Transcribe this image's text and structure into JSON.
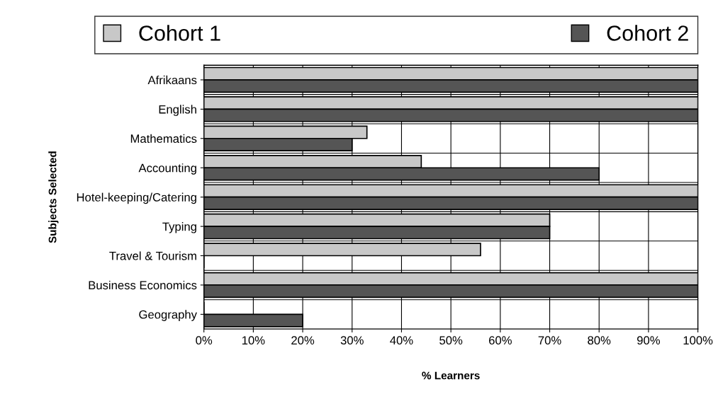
{
  "chart_data": {
    "type": "bar",
    "orientation": "horizontal",
    "xlabel": "% Learners",
    "ylabel": "Subjects Selected",
    "categories": [
      "Afrikaans",
      "English",
      "Mathematics",
      "Accounting",
      "Hotel-keeping/Catering",
      "Typing",
      "Travel & Tourism",
      "Business Economics",
      "Geography"
    ],
    "series": [
      {
        "name": "Cohort 1",
        "color": "#c8c8c8",
        "values": [
          100,
          100,
          33,
          44,
          100,
          70,
          56,
          100,
          0
        ]
      },
      {
        "name": "Cohort 2",
        "color": "#555555",
        "values": [
          100,
          100,
          30,
          80,
          100,
          70,
          0,
          100,
          20
        ]
      }
    ],
    "xlim": [
      0,
      100
    ],
    "xticks": [
      {
        "value": 0,
        "label": "0%"
      },
      {
        "value": 10,
        "label": "10%"
      },
      {
        "value": 20,
        "label": "20%"
      },
      {
        "value": 30,
        "label": "30%"
      },
      {
        "value": 40,
        "label": "40%"
      },
      {
        "value": 50,
        "label": "50%"
      },
      {
        "value": 60,
        "label": "60%"
      },
      {
        "value": 70,
        "label": "70%"
      },
      {
        "value": 80,
        "label": "80%"
      },
      {
        "value": 90,
        "label": "90%"
      },
      {
        "value": 100,
        "label": "100%"
      }
    ],
    "grid": true,
    "legend": "top"
  }
}
